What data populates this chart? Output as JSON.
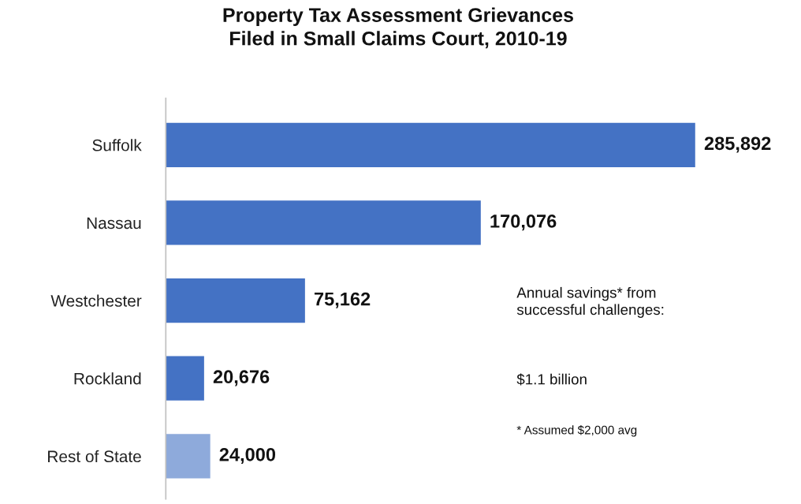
{
  "chart_data": {
    "type": "bar",
    "orientation": "horizontal",
    "title": "Property Tax Assessment Grievances\nFiled in Small Claims Court, 2010-19",
    "categories": [
      "Suffolk",
      "Nassau",
      "Westchester",
      "Rockland",
      "Rest of State"
    ],
    "values": [
      285892,
      170076,
      75162,
      20676,
      24000
    ],
    "colors": [
      "#4472c4",
      "#4472c4",
      "#4472c4",
      "#4472c4",
      "#8eaadb"
    ],
    "value_labels": [
      "285,892",
      "170,076",
      "75,162",
      "20,676",
      "24,000"
    ],
    "grid": false,
    "legend": false,
    "tick_labels": "y",
    "annotations": [
      "Annual savings* from\nsuccessful challenges:",
      "$1.1 billion",
      "* Assumed $2,000 avg"
    ]
  }
}
